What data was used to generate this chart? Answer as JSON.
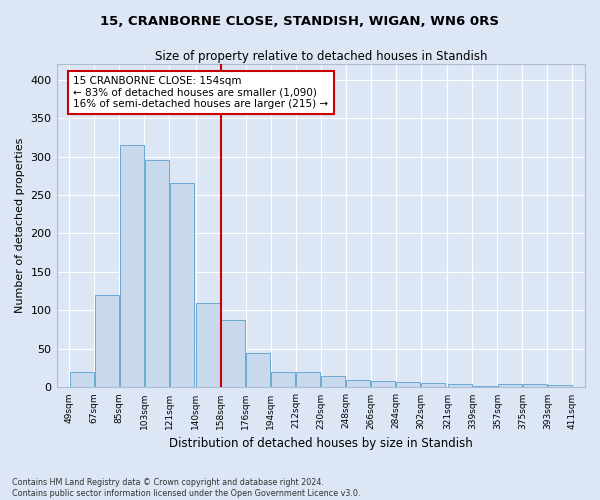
{
  "title": "15, CRANBORNE CLOSE, STANDISH, WIGAN, WN6 0RS",
  "subtitle": "Size of property relative to detached houses in Standish",
  "xlabel": "Distribution of detached houses by size in Standish",
  "ylabel": "Number of detached properties",
  "bar_color": "#c8d9ee",
  "bar_edge_color": "#6aaad4",
  "background_color": "#dce6f5",
  "fig_background_color": "#dce6f5",
  "grid_color": "#ffffff",
  "annotation_box_color": "#cc0000",
  "vline_color": "#cc0000",
  "vline_x": 158,
  "annotation_text": "15 CRANBORNE CLOSE: 154sqm\n← 83% of detached houses are smaller (1,090)\n16% of semi-detached houses are larger (215) →",
  "footer_text": "Contains HM Land Registry data © Crown copyright and database right 2024.\nContains public sector information licensed under the Open Government Licence v3.0.",
  "bin_edges": [
    49,
    67,
    85,
    103,
    121,
    140,
    158,
    176,
    194,
    212,
    230,
    248,
    266,
    284,
    302,
    321,
    339,
    357,
    375,
    393,
    411
  ],
  "bin_values": [
    20,
    120,
    315,
    295,
    265,
    110,
    88,
    45,
    20,
    20,
    15,
    10,
    8,
    7,
    6,
    4,
    2,
    5,
    4,
    3
  ],
  "ylim": [
    0,
    420
  ],
  "yticks": [
    0,
    50,
    100,
    150,
    200,
    250,
    300,
    350,
    400
  ]
}
